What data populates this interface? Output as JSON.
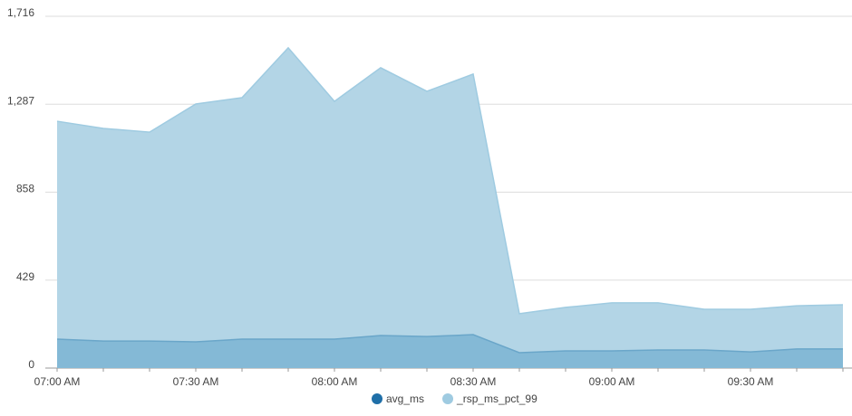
{
  "chart_data": {
    "type": "area",
    "categories": [
      "07:00 AM",
      null,
      null,
      "07:30 AM",
      null,
      null,
      "08:00 AM",
      null,
      null,
      "08:30 AM",
      null,
      null,
      "09:00 AM",
      null,
      null,
      "09:30 AM",
      null,
      null
    ],
    "series": [
      {
        "name": "_rsp_ms_pct_99",
        "color": "#9fcbe1",
        "values": [
          1204,
          1169,
          1151,
          1288,
          1319,
          1562,
          1301,
          1465,
          1350,
          1434,
          265,
          296,
          318,
          318,
          287,
          287,
          304,
          309
        ]
      },
      {
        "name": "avg_ms",
        "color": "#1f6fa8",
        "values": [
          141,
          132,
          132,
          128,
          141,
          141,
          141,
          159,
          154,
          163,
          75,
          84,
          84,
          88,
          88,
          79,
          93,
          93
        ]
      }
    ],
    "ylim": [
      0,
      1716
    ],
    "yticks": [
      0,
      429,
      858,
      {
        "value": 1287,
        "label": "1,287"
      },
      {
        "value": 1716,
        "label": "1,716"
      }
    ],
    "grid": true,
    "legend": "bottom"
  }
}
